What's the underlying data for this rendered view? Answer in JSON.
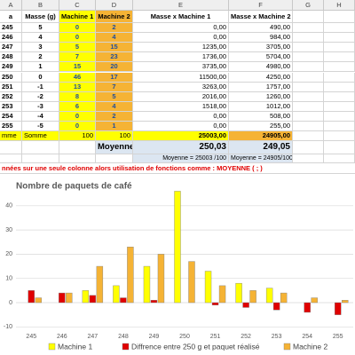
{
  "sheet": {
    "column_letters": [
      "A",
      "B",
      "C",
      "D",
      "E",
      "F",
      "G",
      "H"
    ],
    "header": [
      "a",
      "Masse (g)",
      "Machine 1",
      "Machine 2",
      "Masse x Machine 1",
      "Masse x Machine 2"
    ],
    "rows": [
      [
        "245",
        "5",
        "0",
        "2",
        "0,00",
        "490,00"
      ],
      [
        "246",
        "4",
        "0",
        "4",
        "0,00",
        "984,00"
      ],
      [
        "247",
        "3",
        "5",
        "15",
        "1235,00",
        "3705,00"
      ],
      [
        "248",
        "2",
        "7",
        "23",
        "1736,00",
        "5704,00"
      ],
      [
        "249",
        "1",
        "15",
        "20",
        "3735,00",
        "4980,00"
      ],
      [
        "250",
        "0",
        "46",
        "17",
        "11500,00",
        "4250,00"
      ],
      [
        "251",
        "-1",
        "13",
        "7",
        "3263,00",
        "1757,00"
      ],
      [
        "252",
        "-2",
        "8",
        "5",
        "2016,00",
        "1260,00"
      ],
      [
        "253",
        "-3",
        "6",
        "4",
        "1518,00",
        "1012,00"
      ],
      [
        "254",
        "-4",
        "0",
        "2",
        "0,00",
        "508,00"
      ],
      [
        "255",
        "-5",
        "0",
        "1",
        "0,00",
        "255,00"
      ]
    ],
    "sum_row": [
      "mme",
      "Somme",
      "100",
      "100",
      "25003,00",
      "24905,00"
    ],
    "mean_row": [
      "Moyenne",
      "250,03",
      "249,05"
    ],
    "formula_row": [
      "Moyenne = 25003 /100",
      "Moyenne = 24905/100"
    ],
    "note": "nnées sur une seule colonne alors utilisation de fonctions comme : MOYENNE ( ; )"
  },
  "chart_data": {
    "type": "bar",
    "title": "Nombre de paquets de café",
    "categories": [
      "245",
      "246",
      "247",
      "248",
      "249",
      "250",
      "251",
      "252",
      "253",
      "254",
      "255"
    ],
    "series": [
      {
        "name": "Machine 1",
        "color": "#ffff00",
        "values": [
          0,
          0,
          5,
          7,
          15,
          46,
          13,
          8,
          6,
          0,
          0
        ]
      },
      {
        "name": "Diffrence entre 250 g et paquet réalisé",
        "color": "#e00000",
        "values": [
          5,
          4,
          3,
          2,
          1,
          0,
          -1,
          -2,
          -3,
          -4,
          -5
        ]
      },
      {
        "name": "Machine 2",
        "color": "#f5b335",
        "values": [
          2,
          4,
          15,
          23,
          20,
          17,
          7,
          5,
          4,
          2,
          1
        ]
      }
    ],
    "ylim": [
      -10,
      50
    ],
    "yticks": [
      -10,
      0,
      10,
      20,
      30,
      40
    ],
    "grid": true,
    "legend": "bottom"
  }
}
